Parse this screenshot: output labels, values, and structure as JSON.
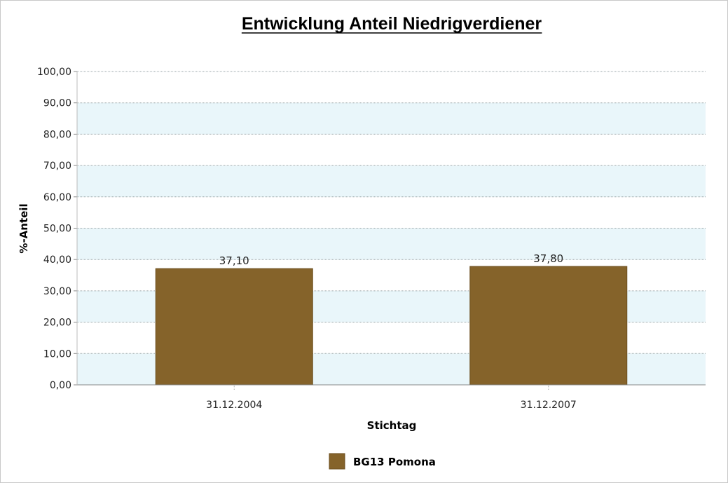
{
  "chart_data": {
    "type": "bar",
    "title": "Entwicklung Anteil Niedrigverdiener",
    "xlabel": "Stichtag",
    "ylabel": "%-Anteil",
    "categories": [
      "31.12.2004",
      "31.12.2007"
    ],
    "series": [
      {
        "name": "BG13 Pomona",
        "values": [
          37.1,
          37.8
        ],
        "value_labels": [
          "37,10",
          "37,80"
        ],
        "color": "#85632a"
      }
    ],
    "ylim": [
      0,
      100
    ],
    "yticks": [
      0,
      10,
      20,
      30,
      40,
      50,
      60,
      70,
      80,
      90,
      100
    ],
    "ytick_labels": [
      "0,00",
      "10,00",
      "20,00",
      "30,00",
      "40,00",
      "50,00",
      "60,00",
      "70,00",
      "80,00",
      "90,00",
      "100,00"
    ],
    "grid": true,
    "band_color": "#e9f6fa",
    "legend_position": "bottom-center"
  }
}
